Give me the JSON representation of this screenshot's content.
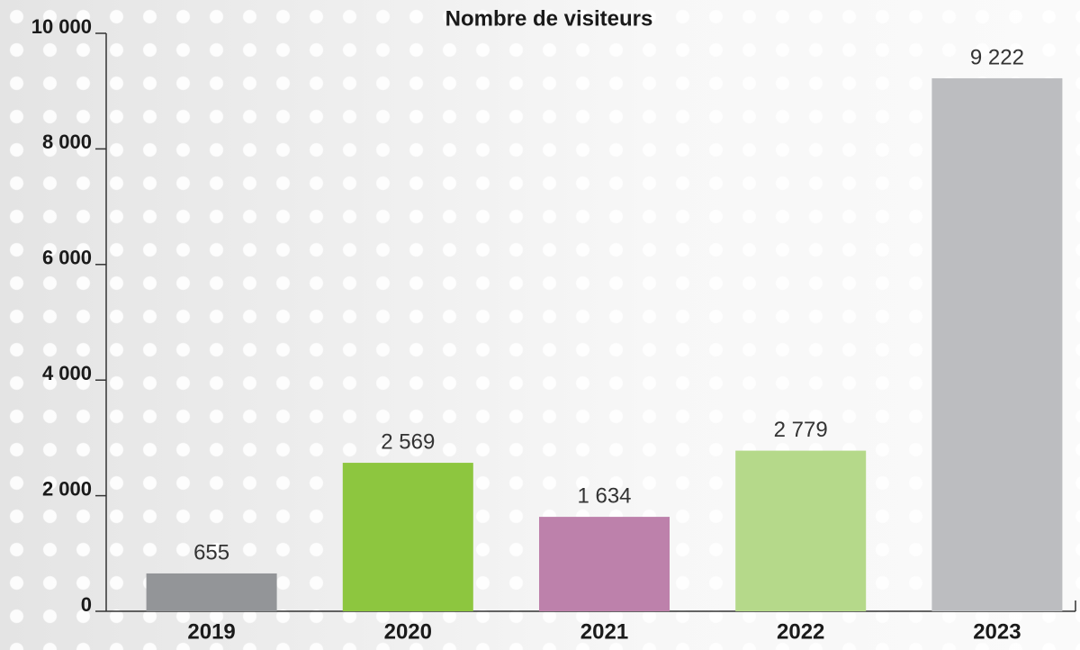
{
  "chart_data": {
    "type": "bar",
    "title": "Nombre de visiteurs",
    "categories": [
      "2019",
      "2020",
      "2021",
      "2022",
      "2023"
    ],
    "values": [
      655,
      2569,
      1634,
      2779,
      9222
    ],
    "value_labels": [
      "655",
      "2 569",
      "1 634",
      "2 779",
      "9 222"
    ],
    "colors": [
      "#939598",
      "#8dc63f",
      "#bd81ab",
      "#b5d98a",
      "#bcbdc0"
    ],
    "ylim": [
      0,
      10000
    ],
    "yticks": [
      0,
      {
        "value": 2000,
        "label": "2 000"
      },
      {
        "value": 4000,
        "label": "4 000"
      },
      {
        "value": 6000,
        "label": "6 000"
      },
      {
        "value": 8000,
        "label": "8 000"
      },
      {
        "value": 10000,
        "label": "10 000"
      }
    ]
  }
}
